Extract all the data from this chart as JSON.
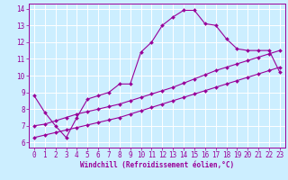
{
  "xlabel": "Windchill (Refroidissement éolien,°C)",
  "xlim": [
    -0.5,
    23.5
  ],
  "ylim": [
    5.7,
    14.3
  ],
  "yticks": [
    6,
    7,
    8,
    9,
    10,
    11,
    12,
    13,
    14
  ],
  "xticks": [
    0,
    1,
    2,
    3,
    4,
    5,
    6,
    7,
    8,
    9,
    10,
    11,
    12,
    13,
    14,
    15,
    16,
    17,
    18,
    19,
    20,
    21,
    22,
    23
  ],
  "bg_color": "#cceeff",
  "line_color": "#990099",
  "line1_x": [
    0,
    1,
    2,
    3,
    4,
    5,
    6,
    7,
    8,
    9,
    10,
    11,
    12,
    13,
    14,
    15,
    16,
    17,
    18,
    19,
    20,
    21,
    22,
    23
  ],
  "line1_y": [
    8.8,
    7.8,
    7.0,
    6.3,
    7.5,
    8.6,
    8.8,
    9.0,
    9.5,
    9.5,
    11.4,
    12.0,
    13.0,
    13.5,
    13.9,
    13.9,
    13.1,
    13.0,
    12.2,
    11.6,
    11.5,
    11.5,
    11.5,
    10.2
  ],
  "line2_x": [
    0,
    1,
    2,
    3,
    4,
    5,
    6,
    7,
    8,
    9,
    10,
    11,
    12,
    13,
    14,
    15,
    16,
    17,
    18,
    19,
    20,
    21,
    22,
    23
  ],
  "line2_y": [
    7.0,
    7.1,
    7.3,
    7.5,
    7.7,
    7.85,
    8.0,
    8.15,
    8.3,
    8.5,
    8.7,
    8.9,
    9.1,
    9.3,
    9.55,
    9.8,
    10.05,
    10.3,
    10.5,
    10.7,
    10.9,
    11.1,
    11.3,
    11.5
  ],
  "line3_x": [
    0,
    1,
    2,
    3,
    4,
    5,
    6,
    7,
    8,
    9,
    10,
    11,
    12,
    13,
    14,
    15,
    16,
    17,
    18,
    19,
    20,
    21,
    22,
    23
  ],
  "line3_y": [
    6.3,
    6.45,
    6.6,
    6.75,
    6.9,
    7.05,
    7.2,
    7.35,
    7.5,
    7.7,
    7.9,
    8.1,
    8.3,
    8.5,
    8.7,
    8.9,
    9.1,
    9.3,
    9.5,
    9.7,
    9.9,
    10.1,
    10.3,
    10.5
  ]
}
